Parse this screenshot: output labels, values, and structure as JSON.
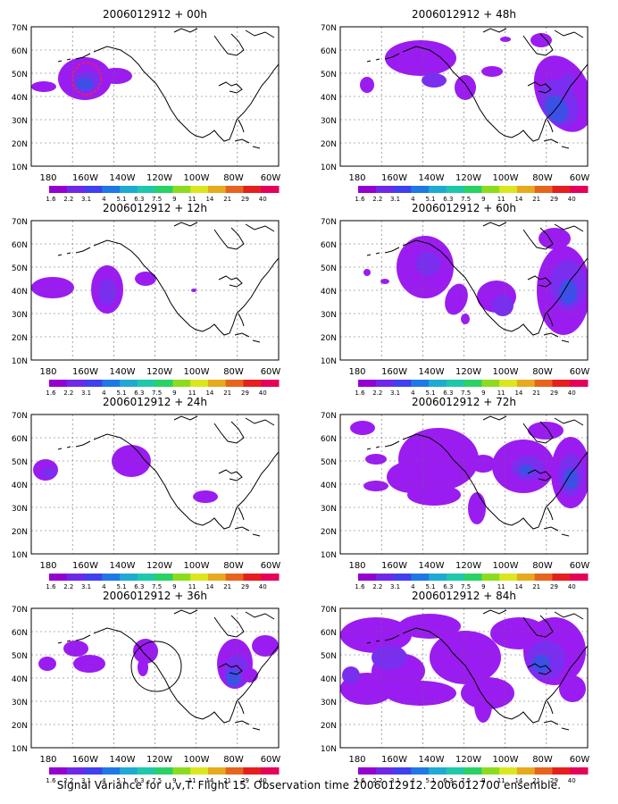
{
  "lat_labels": [
    "70N",
    "60N",
    "50N",
    "40N",
    "30N",
    "20N",
    "10N"
  ],
  "lon_labels": [
    "180",
    "160W",
    "140W",
    "120W",
    "100W",
    "80W",
    "60W"
  ],
  "colorbar_labels": [
    "1.6",
    "2.2",
    "3.1",
    "4",
    "5.1",
    "6.3",
    "7.5",
    "9",
    "11",
    "14",
    "21",
    "29",
    "40"
  ],
  "colorbar_colors": [
    "#9500d0",
    "#7028e8",
    "#4040f0",
    "#1e78e6",
    "#1eaad2",
    "#1ec8aa",
    "#28d264",
    "#8cdc1e",
    "#dce61e",
    "#e6aa1e",
    "#e6641e",
    "#e61e1e",
    "#e6005a"
  ],
  "panels": [
    {
      "title": "2006012912 + 00h"
    },
    {
      "title": "2006012912 + 48h"
    },
    {
      "title": "2006012912 + 12h"
    },
    {
      "title": "2006012912 + 60h"
    },
    {
      "title": "2006012912 + 24h"
    },
    {
      "title": "2006012912 + 72h"
    },
    {
      "title": "2006012912 + 36h"
    },
    {
      "title": "2006012912 + 84h"
    }
  ],
  "caption": "Signal Variance for u,v,T. Flight 15. Observation time 2006012912. 2006012700 ensemble."
}
